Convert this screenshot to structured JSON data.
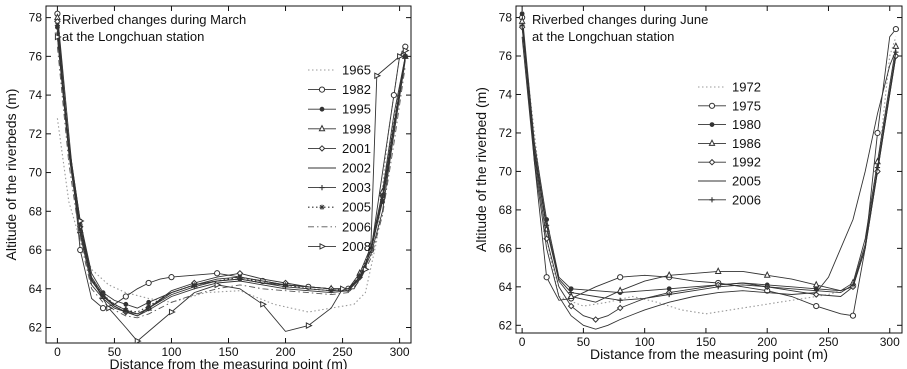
{
  "chart_data": [
    {
      "type": "line",
      "title": "Riverbed changes during March at the Longchuan station",
      "title_lines": [
        "Riverbed changes during March",
        "at the Longchuan station"
      ],
      "xlabel": "Distance from the measuring point (m)",
      "ylabel": "Altitude of the riverbeds (m)",
      "xlim": [
        -10,
        310
      ],
      "ylim": [
        61.2,
        78.6
      ],
      "xticks": [
        0,
        50,
        100,
        150,
        200,
        250,
        300
      ],
      "yticks": [
        62,
        64,
        66,
        68,
        70,
        72,
        74,
        76,
        78
      ],
      "legend_position": "right",
      "series": [
        {
          "name": "1965",
          "style": "dotted",
          "color": "#9a9a9a",
          "marker": "none",
          "x": [
            0,
            10,
            20,
            30,
            45,
            60,
            80,
            100,
            130,
            160,
            190,
            220,
            240,
            260,
            270,
            280,
            290,
            300,
            305
          ],
          "y": [
            72.8,
            68.5,
            66.5,
            65.0,
            64.2,
            63.8,
            63.5,
            63.3,
            63.8,
            63.9,
            63.2,
            62.8,
            63.0,
            63.2,
            63.8,
            66.5,
            72.0,
            76.0,
            76.7
          ]
        },
        {
          "name": "1982",
          "style": "solid",
          "color": "#333",
          "marker": "circle",
          "x": [
            0,
            10,
            20,
            30,
            40,
            50,
            60,
            70,
            80,
            90,
            100,
            120,
            140,
            160,
            180,
            200,
            220,
            240,
            255,
            265,
            275,
            285,
            295,
            300,
            305
          ],
          "y": [
            78.2,
            72.0,
            66.0,
            63.5,
            63.0,
            63.2,
            63.6,
            64.0,
            64.3,
            64.5,
            64.6,
            64.7,
            64.8,
            64.6,
            64.4,
            64.2,
            64.1,
            64.0,
            64.0,
            64.5,
            66.0,
            70.0,
            74.0,
            76.0,
            76.5
          ]
        },
        {
          "name": "1995",
          "style": "solid",
          "color": "#333",
          "marker": "dot",
          "x": [
            0,
            10,
            20,
            30,
            40,
            50,
            60,
            70,
            80,
            100,
            120,
            140,
            160,
            180,
            200,
            220,
            240,
            255,
            265,
            275,
            285,
            295,
            305
          ],
          "y": [
            77.5,
            71.5,
            67.5,
            64.8,
            63.8,
            63.4,
            63.2,
            63.0,
            63.3,
            63.8,
            64.2,
            64.4,
            64.5,
            64.3,
            64.2,
            64.1,
            64.0,
            64.0,
            64.6,
            66.0,
            68.5,
            72.0,
            76.0
          ]
        },
        {
          "name": "1998",
          "style": "solid",
          "color": "#333",
          "marker": "triangle",
          "x": [
            0,
            10,
            20,
            30,
            40,
            50,
            60,
            70,
            80,
            100,
            120,
            140,
            160,
            180,
            200,
            220,
            240,
            255,
            265,
            275,
            285,
            295,
            305
          ],
          "y": [
            78.0,
            71.2,
            67.0,
            64.5,
            63.6,
            63.2,
            62.9,
            62.7,
            63.0,
            63.8,
            64.2,
            64.5,
            64.6,
            64.4,
            64.2,
            64.1,
            64.0,
            64.0,
            64.8,
            66.2,
            69.0,
            73.0,
            76.0
          ]
        },
        {
          "name": "2001",
          "style": "solid",
          "color": "#333",
          "marker": "diamond",
          "x": [
            0,
            10,
            20,
            30,
            40,
            50,
            60,
            70,
            80,
            100,
            120,
            140,
            160,
            180,
            200,
            220,
            240,
            255,
            265,
            275,
            285,
            295,
            305
          ],
          "y": [
            77.8,
            71.3,
            67.2,
            64.6,
            63.7,
            63.1,
            62.8,
            62.6,
            63.0,
            63.9,
            64.3,
            64.6,
            64.8,
            64.5,
            64.3,
            64.1,
            64.0,
            64.0,
            64.6,
            66.0,
            68.8,
            72.5,
            76.0
          ]
        },
        {
          "name": "2002",
          "style": "solid",
          "color": "#333",
          "marker": "none",
          "x": [
            0,
            10,
            20,
            30,
            40,
            50,
            60,
            70,
            80,
            100,
            120,
            140,
            160,
            180,
            200,
            220,
            240,
            255,
            265,
            275,
            285,
            295,
            305
          ],
          "y": [
            77.0,
            71.0,
            66.8,
            64.2,
            63.5,
            63.0,
            62.8,
            62.6,
            62.9,
            63.6,
            64.0,
            64.3,
            64.4,
            64.2,
            64.0,
            63.9,
            63.8,
            63.9,
            64.5,
            65.8,
            68.0,
            72.0,
            75.8
          ]
        },
        {
          "name": "2003",
          "style": "solid",
          "color": "#333",
          "marker": "plus",
          "x": [
            0,
            10,
            20,
            30,
            40,
            50,
            60,
            70,
            80,
            100,
            120,
            140,
            160,
            180,
            200,
            220,
            240,
            255,
            265,
            275,
            285,
            295,
            305
          ],
          "y": [
            77.2,
            71.1,
            67.0,
            64.4,
            63.6,
            63.1,
            62.8,
            62.7,
            63.0,
            63.7,
            64.1,
            64.4,
            64.5,
            64.3,
            64.1,
            64.0,
            63.9,
            63.9,
            64.6,
            66.0,
            68.6,
            72.3,
            76.0
          ]
        },
        {
          "name": "2005",
          "style": "dotted",
          "color": "#333",
          "marker": "star",
          "x": [
            0,
            10,
            20,
            30,
            40,
            50,
            60,
            70,
            80,
            100,
            120,
            140,
            160,
            180,
            200,
            220,
            240,
            255,
            265,
            275,
            285,
            295,
            305
          ],
          "y": [
            77.6,
            71.4,
            67.3,
            64.5,
            63.7,
            63.2,
            62.9,
            62.8,
            63.1,
            63.8,
            64.2,
            64.4,
            64.6,
            64.3,
            64.2,
            64.0,
            63.9,
            64.0,
            64.7,
            66.1,
            68.8,
            72.6,
            76.0
          ]
        },
        {
          "name": "2006",
          "style": "dashdot",
          "color": "#555",
          "marker": "none",
          "x": [
            0,
            10,
            20,
            30,
            40,
            50,
            60,
            70,
            80,
            100,
            120,
            140,
            160,
            180,
            200,
            220,
            240,
            255,
            265,
            275,
            285,
            295,
            305
          ],
          "y": [
            76.5,
            70.5,
            66.5,
            64.0,
            63.3,
            62.9,
            62.6,
            62.5,
            62.7,
            63.3,
            63.7,
            64.0,
            64.2,
            64.0,
            63.9,
            63.8,
            63.7,
            63.8,
            64.4,
            65.6,
            67.8,
            71.5,
            75.5
          ]
        },
        {
          "name": "2008",
          "style": "solid",
          "color": "#333",
          "marker": "triangle-right",
          "x": [
            0,
            10,
            20,
            30,
            45,
            60,
            70,
            80,
            100,
            120,
            140,
            160,
            180,
            200,
            220,
            240,
            250,
            260,
            270,
            275,
            280,
            290,
            300,
            305
          ],
          "y": [
            77.0,
            71.5,
            67.5,
            64.5,
            63.0,
            62.0,
            61.3,
            61.8,
            62.8,
            63.8,
            64.2,
            64.0,
            63.2,
            61.8,
            62.1,
            63.0,
            64.0,
            64.0,
            65.0,
            66.5,
            75.0,
            75.5,
            76.0,
            76.3
          ]
        }
      ]
    },
    {
      "type": "line",
      "title": "Riverbed changes during June at the Longchuan station",
      "title_lines": [
        "Riverbed changes during June",
        "at the Longchuan station"
      ],
      "xlabel": "Distance from the measuring point (m)",
      "ylabel": "Altitude of the riverbed (m)",
      "xlim": [
        -5,
        310
      ],
      "ylim": [
        61.6,
        78.6
      ],
      "xticks": [
        0,
        50,
        100,
        150,
        200,
        250,
        300
      ],
      "yticks": [
        62,
        64,
        66,
        68,
        70,
        72,
        74,
        76,
        78
      ],
      "legend_position": "center-left",
      "series": [
        {
          "name": "1972",
          "style": "dotted",
          "color": "#9a9a9a",
          "marker": "none",
          "x": [
            0,
            10,
            20,
            30,
            50,
            70,
            90,
            110,
            130,
            150,
            170,
            190,
            210,
            230,
            250,
            270,
            280,
            290,
            300,
            305
          ],
          "y": [
            77.5,
            72.0,
            66.5,
            63.5,
            63.0,
            63.2,
            63.5,
            63.2,
            62.8,
            62.6,
            62.8,
            63.0,
            63.2,
            63.4,
            63.6,
            64.0,
            66.0,
            70.0,
            76.0,
            77.0
          ]
        },
        {
          "name": "1975",
          "style": "solid",
          "color": "#333",
          "marker": "circle",
          "x": [
            0,
            10,
            20,
            30,
            40,
            60,
            80,
            100,
            120,
            140,
            160,
            180,
            200,
            220,
            240,
            260,
            270,
            280,
            290,
            300,
            305
          ],
          "y": [
            78.0,
            70.5,
            64.5,
            63.3,
            63.4,
            64.0,
            64.5,
            64.6,
            64.5,
            64.3,
            64.2,
            64.0,
            63.8,
            63.5,
            63.0,
            62.6,
            62.5,
            66.0,
            72.0,
            77.0,
            77.4
          ]
        },
        {
          "name": "1980",
          "style": "solid",
          "color": "#333",
          "marker": "dot",
          "x": [
            0,
            10,
            20,
            30,
            40,
            60,
            80,
            100,
            120,
            140,
            160,
            180,
            200,
            220,
            240,
            260,
            270,
            280,
            290,
            300,
            305
          ],
          "y": [
            78.2,
            71.5,
            67.5,
            64.5,
            63.9,
            63.8,
            63.7,
            63.8,
            63.9,
            64.0,
            64.1,
            64.2,
            64.1,
            64.0,
            63.9,
            63.8,
            64.0,
            66.0,
            70.0,
            74.0,
            76.0
          ]
        },
        {
          "name": "1986",
          "style": "solid",
          "color": "#333",
          "marker": "triangle",
          "x": [
            0,
            10,
            20,
            30,
            40,
            60,
            80,
            100,
            120,
            140,
            160,
            180,
            200,
            220,
            240,
            260,
            270,
            280,
            290,
            300,
            305
          ],
          "y": [
            77.8,
            71.0,
            67.0,
            64.3,
            63.5,
            63.2,
            63.8,
            64.3,
            64.6,
            64.7,
            64.8,
            64.8,
            64.6,
            64.4,
            64.1,
            63.8,
            64.2,
            66.5,
            70.5,
            74.5,
            76.5
          ]
        },
        {
          "name": "1992",
          "style": "solid",
          "color": "#333",
          "marker": "diamond",
          "x": [
            0,
            10,
            20,
            30,
            40,
            50,
            60,
            70,
            80,
            100,
            120,
            140,
            160,
            180,
            200,
            220,
            240,
            260,
            270,
            280,
            290,
            300,
            305
          ],
          "y": [
            77.5,
            70.8,
            66.5,
            64.0,
            63.0,
            62.5,
            62.3,
            62.5,
            62.9,
            63.4,
            63.7,
            63.9,
            64.1,
            64.2,
            64.0,
            63.8,
            63.6,
            63.5,
            64.0,
            66.0,
            70.0,
            74.0,
            76.0
          ]
        },
        {
          "name": "2005",
          "style": "solid",
          "color": "#333",
          "marker": "none",
          "x": [
            0,
            10,
            20,
            30,
            40,
            50,
            60,
            70,
            80,
            100,
            120,
            140,
            160,
            180,
            200,
            220,
            240,
            250,
            260,
            270,
            280,
            290,
            300,
            305
          ],
          "y": [
            77.0,
            70.5,
            66.0,
            63.5,
            62.5,
            62.0,
            61.8,
            62.0,
            62.3,
            62.8,
            63.2,
            63.5,
            63.7,
            63.8,
            63.7,
            63.6,
            63.7,
            64.5,
            66.0,
            67.5,
            70.0,
            73.0,
            75.5,
            76.3
          ]
        },
        {
          "name": "2006",
          "style": "solid",
          "color": "#333",
          "marker": "plus",
          "x": [
            0,
            10,
            20,
            30,
            40,
            60,
            80,
            100,
            120,
            140,
            160,
            180,
            200,
            220,
            240,
            260,
            270,
            280,
            290,
            300,
            305
          ],
          "y": [
            77.6,
            71.2,
            67.2,
            64.4,
            63.7,
            63.5,
            63.3,
            63.4,
            63.6,
            63.8,
            64.0,
            64.1,
            64.0,
            63.9,
            63.8,
            63.7,
            64.1,
            66.2,
            70.2,
            74.2,
            76.2
          ]
        }
      ]
    }
  ]
}
